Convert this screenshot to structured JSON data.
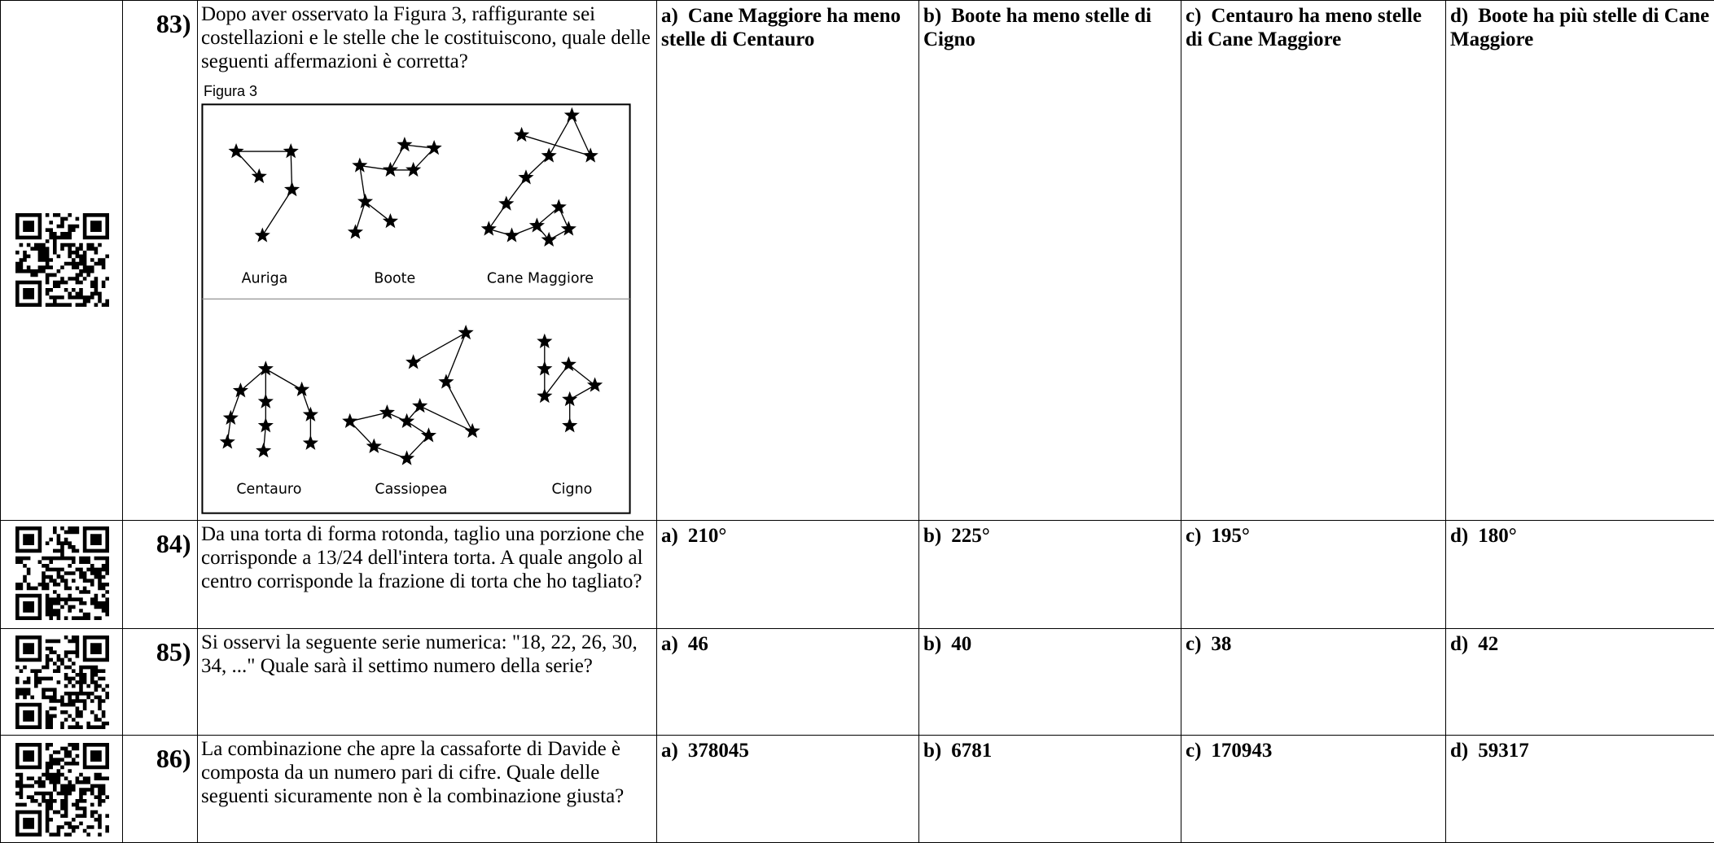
{
  "questions": [
    {
      "number": "83)",
      "text": "Dopo aver osservato la Figura 3, raffigurante sei costellazioni e le stelle che le costituiscono, quale delle seguenti affermazioni è corretta?",
      "figure": {
        "title": "Figura 3",
        "labels": [
          "Auriga",
          "Boote",
          "Cane Maggiore",
          "Centauro",
          "Cassiopea",
          "Cigno"
        ]
      },
      "options": [
        {
          "letter": "a)",
          "text": "Cane Maggiore ha meno stelle di Centauro"
        },
        {
          "letter": "b)",
          "text": "Boote ha meno stelle di Cigno"
        },
        {
          "letter": "c)",
          "text": "Centauro ha meno stelle di Cane Maggiore"
        },
        {
          "letter": "d)",
          "text": "Boote ha più stelle di Cane Maggiore"
        }
      ]
    },
    {
      "number": "84)",
      "text": "Da una torta di forma rotonda, taglio una porzione che corrisponde a 13/24 dell'intera torta. A quale angolo al centro corrisponde la frazione di torta che ho tagliato?",
      "options": [
        {
          "letter": "a)",
          "text": "210°"
        },
        {
          "letter": "b)",
          "text": "225°"
        },
        {
          "letter": "c)",
          "text": "195°"
        },
        {
          "letter": "d)",
          "text": "180°"
        }
      ]
    },
    {
      "number": "85)",
      "text": "Si osservi la seguente serie numerica: \"18, 22, 26, 30, 34, ...\" Quale sarà il settimo numero della serie?",
      "options": [
        {
          "letter": "a)",
          "text": "46"
        },
        {
          "letter": "b)",
          "text": "40"
        },
        {
          "letter": "c)",
          "text": "38"
        },
        {
          "letter": "d)",
          "text": "42"
        }
      ]
    },
    {
      "number": "86)",
      "text": "La combinazione che apre la cassaforte di Davide è composta da un numero pari di cifre. Quale delle seguenti sicuramente non è la combinazione giusta?",
      "options": [
        {
          "letter": "a)",
          "text": "378045"
        },
        {
          "letter": "b)",
          "text": "6781"
        },
        {
          "letter": "c)",
          "text": "170943"
        },
        {
          "letter": "d)",
          "text": "59317"
        }
      ]
    }
  ]
}
